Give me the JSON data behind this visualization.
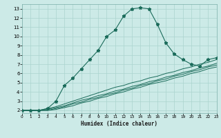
{
  "xlabel": "Humidex (Indice chaleur)",
  "bg_color": "#cceae7",
  "line_color": "#1a6b5a",
  "grid_color": "#aad4ce",
  "xticks": [
    0,
    1,
    2,
    3,
    4,
    5,
    6,
    7,
    8,
    9,
    10,
    11,
    12,
    13,
    14,
    15,
    16,
    17,
    18,
    19,
    20,
    21,
    22,
    23
  ],
  "yticks": [
    2,
    3,
    4,
    5,
    6,
    7,
    8,
    9,
    10,
    11,
    12,
    13
  ],
  "xlim": [
    0,
    23
  ],
  "ylim": [
    1.7,
    13.5
  ],
  "series": [
    {
      "x": [
        0,
        1,
        2,
        3,
        4,
        5,
        6,
        7,
        8,
        9,
        10,
        11,
        12,
        13,
        14,
        15,
        16,
        17,
        18,
        19,
        20,
        21,
        22,
        23
      ],
      "y": [
        2,
        2,
        2,
        2.2,
        3.0,
        4.7,
        5.5,
        6.5,
        7.5,
        8.5,
        10.0,
        10.7,
        12.2,
        13.0,
        13.1,
        13.0,
        11.3,
        9.3,
        8.1,
        7.5,
        7.0,
        6.8,
        7.5,
        7.7
      ],
      "marker": "*",
      "markersize": 3.5,
      "lw": 0.8
    },
    {
      "x": [
        0,
        2,
        3,
        4,
        5,
        6,
        7,
        8,
        9,
        10,
        11,
        12,
        13,
        14,
        15,
        16,
        17,
        18,
        19,
        20,
        21,
        22,
        23
      ],
      "y": [
        2,
        2,
        2.2,
        2.4,
        2.7,
        3.0,
        3.3,
        3.6,
        3.9,
        4.2,
        4.5,
        4.7,
        5.0,
        5.2,
        5.5,
        5.7,
        6.0,
        6.2,
        6.5,
        6.7,
        7.0,
        7.2,
        7.5
      ],
      "marker": null,
      "markersize": 0,
      "lw": 0.7
    },
    {
      "x": [
        0,
        2,
        3,
        4,
        5,
        6,
        7,
        8,
        9,
        10,
        11,
        12,
        13,
        14,
        15,
        16,
        17,
        18,
        19,
        20,
        21,
        22,
        23
      ],
      "y": [
        2,
        2,
        2.1,
        2.3,
        2.5,
        2.8,
        3.1,
        3.3,
        3.6,
        3.8,
        4.1,
        4.3,
        4.6,
        4.8,
        5.1,
        5.3,
        5.6,
        5.8,
        6.1,
        6.3,
        6.6,
        6.8,
        7.1
      ],
      "marker": null,
      "markersize": 0,
      "lw": 0.7
    },
    {
      "x": [
        0,
        2,
        3,
        4,
        5,
        6,
        7,
        8,
        9,
        10,
        11,
        12,
        13,
        14,
        15,
        16,
        17,
        18,
        19,
        20,
        21,
        22,
        23
      ],
      "y": [
        2,
        2,
        2.0,
        2.2,
        2.4,
        2.7,
        2.9,
        3.2,
        3.4,
        3.7,
        3.9,
        4.2,
        4.4,
        4.7,
        4.9,
        5.2,
        5.4,
        5.7,
        5.9,
        6.2,
        6.4,
        6.7,
        6.9
      ],
      "marker": null,
      "markersize": 0,
      "lw": 0.7
    },
    {
      "x": [
        0,
        2,
        3,
        4,
        5,
        6,
        7,
        8,
        9,
        10,
        11,
        12,
        13,
        14,
        15,
        16,
        17,
        18,
        19,
        20,
        21,
        22,
        23
      ],
      "y": [
        2,
        2,
        2.0,
        2.1,
        2.3,
        2.5,
        2.8,
        3.0,
        3.3,
        3.5,
        3.8,
        4.0,
        4.3,
        4.5,
        4.8,
        5.0,
        5.2,
        5.5,
        5.7,
        6.0,
        6.2,
        6.5,
        6.7
      ],
      "marker": null,
      "markersize": 0,
      "lw": 0.7
    }
  ]
}
